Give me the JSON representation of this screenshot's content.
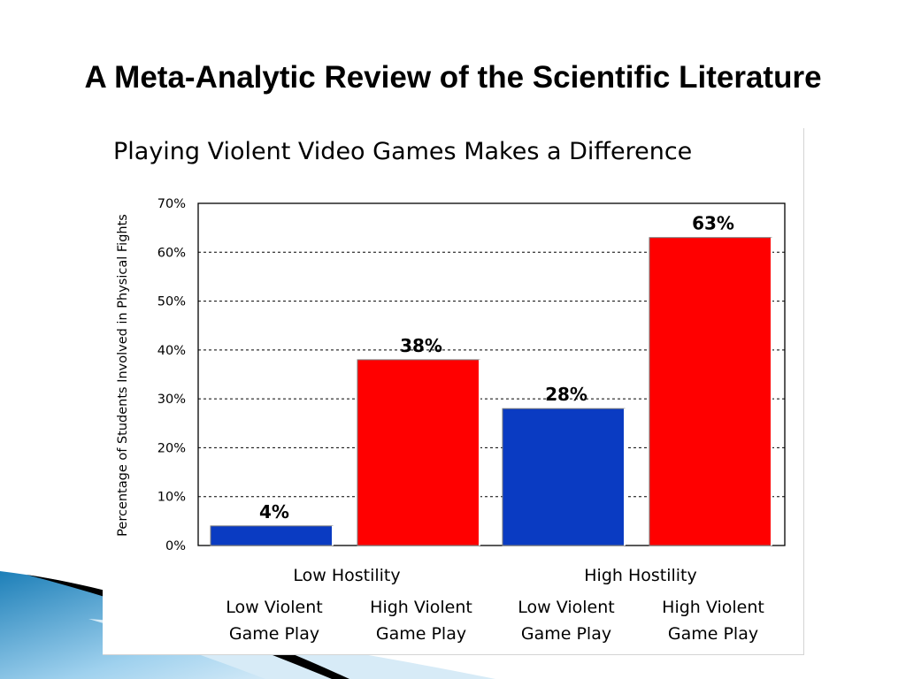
{
  "slide": {
    "title": "A Meta-Analytic Review of the Scientific Literature"
  },
  "colors": {
    "low_violent": "#0a3bc2",
    "high_violent": "#ff0000",
    "grid": "#000000",
    "text": "#000000"
  },
  "chart_data": {
    "type": "bar",
    "title": "Playing Violent Video Games Makes a Difference",
    "ylabel": "Percentage of Students Involved in Physical Fights",
    "xlabel": "",
    "ylim": [
      0,
      70
    ],
    "ytick_labels": [
      "0%",
      "10%",
      "20%",
      "30%",
      "40%",
      "50%",
      "60%",
      "70%"
    ],
    "grid": true,
    "groups": [
      "Low Hostility",
      "High Hostility"
    ],
    "categories": [
      {
        "group": "Low Hostility",
        "label_line1": "Low Violent",
        "label_line2": "Game Play",
        "value": 4,
        "value_label": "4%",
        "color": "#0a3bc2"
      },
      {
        "group": "Low Hostility",
        "label_line1": "High Violent",
        "label_line2": "Game Play",
        "value": 38,
        "value_label": "38%",
        "color": "#ff0000"
      },
      {
        "group": "High Hostility",
        "label_line1": "Low Violent",
        "label_line2": "Game Play",
        "value": 28,
        "value_label": "28%",
        "color": "#0a3bc2"
      },
      {
        "group": "High Hostility",
        "label_line1": "High Violent",
        "label_line2": "Game Play",
        "value": 63,
        "value_label": "63%",
        "color": "#ff0000"
      }
    ]
  }
}
